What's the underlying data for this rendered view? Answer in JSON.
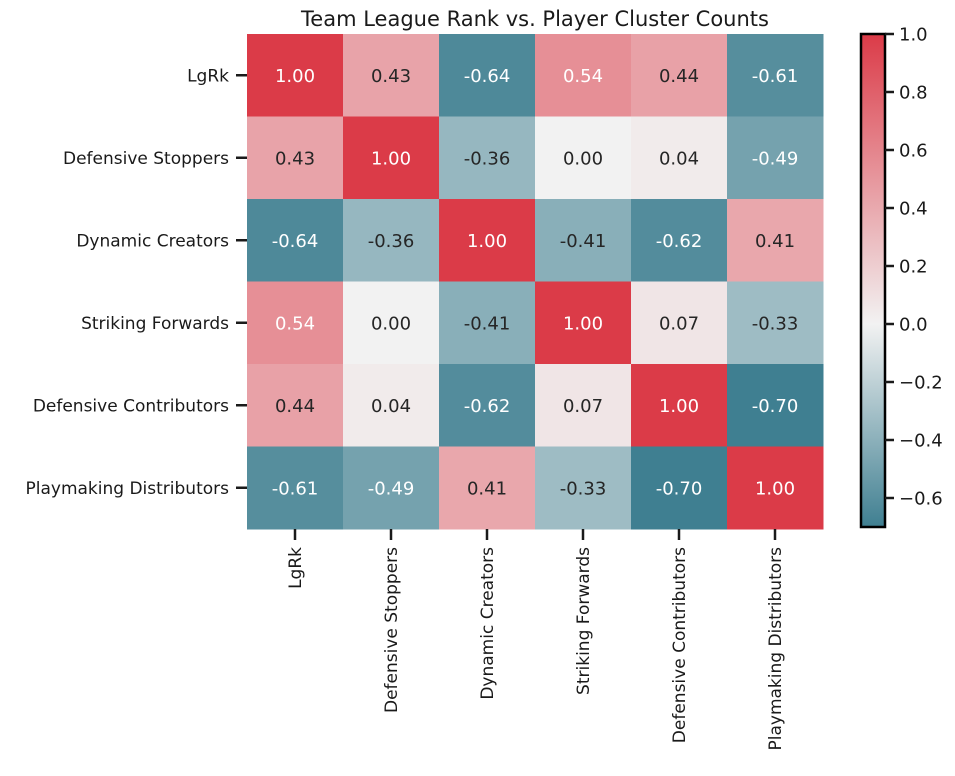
{
  "chart_data": {
    "type": "heatmap",
    "title": "Team League Rank vs. Player Cluster Counts",
    "xlabel": "",
    "ylabel": "",
    "rows": [
      "LgRk",
      "Defensive Stoppers",
      "Dynamic Creators",
      "Striking Forwards",
      "Defensive Contributors",
      "Playmaking Distributors"
    ],
    "columns": [
      "LgRk",
      "Defensive Stoppers",
      "Dynamic Creators",
      "Striking Forwards",
      "Defensive Contributors",
      "Playmaking Distributors"
    ],
    "values": [
      [
        1.0,
        0.43,
        -0.64,
        0.54,
        0.44,
        -0.61
      ],
      [
        0.43,
        1.0,
        -0.36,
        0.0,
        0.04,
        -0.49
      ],
      [
        -0.64,
        -0.36,
        1.0,
        -0.41,
        -0.62,
        0.41
      ],
      [
        0.54,
        0.0,
        -0.41,
        1.0,
        0.07,
        -0.33
      ],
      [
        0.44,
        0.04,
        -0.62,
        0.07,
        1.0,
        -0.7
      ],
      [
        -0.61,
        -0.49,
        0.41,
        -0.33,
        -0.7,
        1.0
      ]
    ],
    "value_labels": [
      [
        "1.00",
        "0.43",
        "-0.64",
        "0.54",
        "0.44",
        "-0.61"
      ],
      [
        "0.43",
        "1.00",
        "-0.36",
        "0.00",
        "0.04",
        "-0.49"
      ],
      [
        "-0.64",
        "-0.36",
        "1.00",
        "-0.41",
        "-0.62",
        "0.41"
      ],
      [
        "0.54",
        "0.00",
        "-0.41",
        "1.00",
        "0.07",
        "-0.33"
      ],
      [
        "0.44",
        "0.04",
        "-0.62",
        "0.07",
        "1.00",
        "-0.70"
      ],
      [
        "-0.61",
        "-0.49",
        "0.41",
        "-0.33",
        "-0.70",
        "1.00"
      ]
    ],
    "colorbar": {
      "range": [
        -0.7,
        1.0
      ],
      "center": 0,
      "ticks": [
        -0.6,
        -0.4,
        -0.2,
        0.0,
        0.2,
        0.4,
        0.6,
        0.8,
        1.0
      ],
      "tick_labels": [
        "−0.6",
        "−0.4",
        "−0.2",
        "0.0",
        "0.2",
        "0.4",
        "0.6",
        "0.8",
        "1.0"
      ],
      "colors": {
        "negative": "#3f7f91",
        "center": "#f2f2f2",
        "positive": "#db3b48"
      }
    },
    "text_colors": {
      "light": "#ffffff",
      "dark": "#262626"
    }
  }
}
